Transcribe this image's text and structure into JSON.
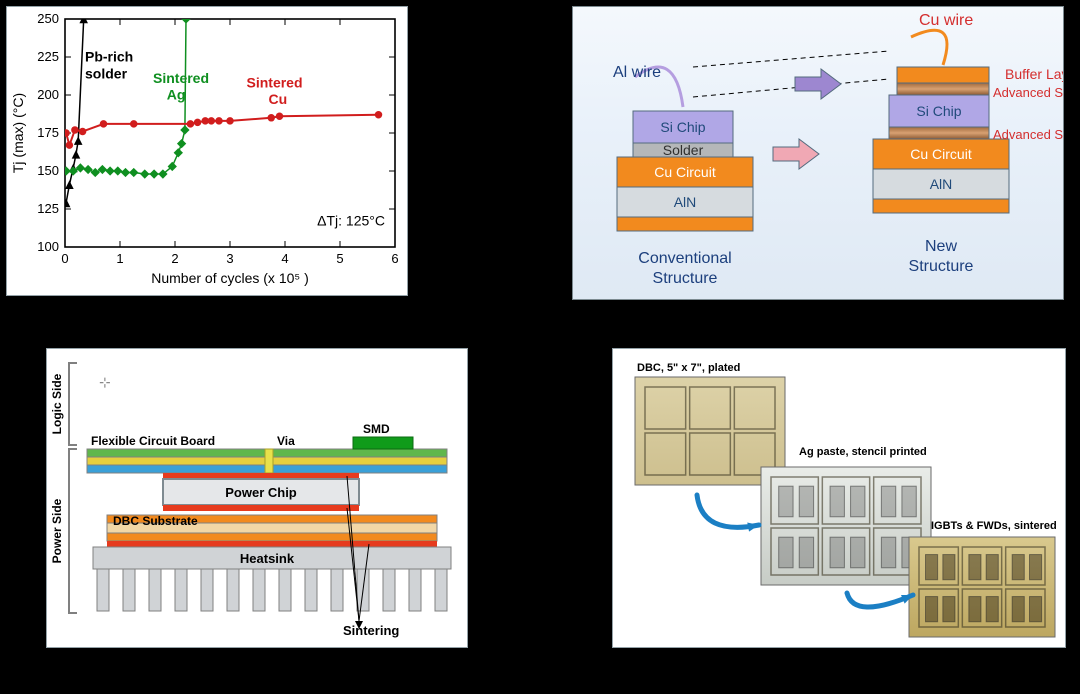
{
  "chart": {
    "type": "scatter-line",
    "background_color": "#ffffff",
    "border_color": "#000000",
    "xlabel": "Number of cycles (x 10⁵ )",
    "ylabel": "Tj (max)  (°C)",
    "label_fontsize": 14,
    "label_color": "#000000",
    "xlim": [
      0,
      6
    ],
    "ylim": [
      100,
      250
    ],
    "xtick_step": 1,
    "ytick_step": 25,
    "tick_fontsize": 13,
    "deltaTj_label": "ΔTj: 125°C",
    "series": {
      "pb": {
        "label": "Pb-rich solder",
        "label_color": "#000000",
        "color": "#000000",
        "marker": "triangle",
        "marker_size": 6,
        "line_width": 1.5,
        "points": [
          [
            0.02,
            129
          ],
          [
            0.08,
            141
          ],
          [
            0.15,
            152
          ],
          [
            0.2,
            161
          ],
          [
            0.24,
            170
          ],
          [
            0.34,
            250
          ]
        ]
      },
      "ag": {
        "label": "Sintered Ag",
        "label_color": "#0f8f20",
        "color": "#0f8f20",
        "marker": "diamond",
        "marker_size": 7,
        "line_width": 1.5,
        "points": [
          [
            0.02,
            150
          ],
          [
            0.15,
            150
          ],
          [
            0.28,
            152
          ],
          [
            0.42,
            151
          ],
          [
            0.55,
            149
          ],
          [
            0.68,
            151
          ],
          [
            0.82,
            150
          ],
          [
            0.96,
            150
          ],
          [
            1.1,
            149
          ],
          [
            1.25,
            149
          ],
          [
            1.45,
            148
          ],
          [
            1.62,
            148
          ],
          [
            1.78,
            148
          ],
          [
            1.95,
            153
          ],
          [
            2.06,
            162
          ],
          [
            2.12,
            168
          ],
          [
            2.18,
            177
          ],
          [
            2.2,
            250
          ]
        ]
      },
      "cu": {
        "label": "Sintered Cu",
        "label_color": "#d11d1d",
        "color": "#d11d1d",
        "marker": "circle",
        "marker_size": 6,
        "line_width": 2,
        "points": [
          [
            0.02,
            175
          ],
          [
            0.08,
            167
          ],
          [
            0.18,
            177
          ],
          [
            0.32,
            176
          ],
          [
            0.7,
            181
          ],
          [
            1.25,
            181
          ],
          [
            2.28,
            181
          ],
          [
            2.41,
            182
          ],
          [
            2.55,
            183
          ],
          [
            2.66,
            183
          ],
          [
            2.8,
            183
          ],
          [
            3.0,
            183
          ],
          [
            3.75,
            185
          ],
          [
            3.9,
            186
          ],
          [
            5.7,
            187
          ]
        ]
      }
    }
  },
  "structures": {
    "title_conventional": "Conventional Structure",
    "title_new": "New Structure",
    "al_wire": "Al wire",
    "cu_wire": "Cu wire",
    "buffer_layer": "Buffer Layer",
    "advanced_sinter": "Advanced Sinter",
    "colors": {
      "si": "#b0a7e6",
      "solder": "#b5b7b9",
      "cu_circuit": "#f28a1e",
      "aln": "#d6dbdf",
      "buffer": "#f28a1e",
      "adv_sinter": "#c98a4f",
      "wire_al": "#b59ee0",
      "wire_cu": "#f28a1e",
      "arrow_purple": "#9d87d0",
      "arrow_pink": "#f0a8b4",
      "outline": "#546b7e"
    },
    "layers": {
      "si": "Si Chip",
      "solder": "Solder",
      "cu": "Cu Circuit",
      "aln": "AlN"
    }
  },
  "crosssection": {
    "logic_side": "Logic Side",
    "power_side": "Power Side",
    "flex": "Flexible Circuit Board",
    "via": "Via",
    "smd": "SMD",
    "power_chip": "Power Chip",
    "dbc": "DBC Substrate",
    "heatsink": "Heatsink",
    "sintering": "Sintering",
    "colors": {
      "frame": "#808080",
      "flex_top": "#60b74c",
      "flex_mid": "#e6cf3f",
      "flex_bot": "#3aa0d8",
      "sinter": "#e63b1e",
      "chip_body": "#e5e7e9",
      "chip_outline": "#7f8b91",
      "cu_dbc": "#f28a1e",
      "aln": "#f2d7a6",
      "heatsink": "#d0d3d6",
      "smd": "#109b1a",
      "via": "#e9e14b",
      "grid": "#9aa4aa"
    }
  },
  "process": {
    "background_color": "#ffffff",
    "steps": [
      {
        "caption": "DBC, 5\" x 7\", plated",
        "tint_top": "#ddd2a8",
        "tint_bot": "#cdbf8e"
      },
      {
        "caption": "Ag paste, stencil printed",
        "tint_top": "#e9ece8",
        "tint_bot": "#c7ccc6"
      },
      {
        "caption": "IGBTs & FWDs, sintered",
        "tint_top": "#d9c98e",
        "tint_bot": "#bda760"
      }
    ],
    "arrow_color": "#1b7fc4"
  }
}
